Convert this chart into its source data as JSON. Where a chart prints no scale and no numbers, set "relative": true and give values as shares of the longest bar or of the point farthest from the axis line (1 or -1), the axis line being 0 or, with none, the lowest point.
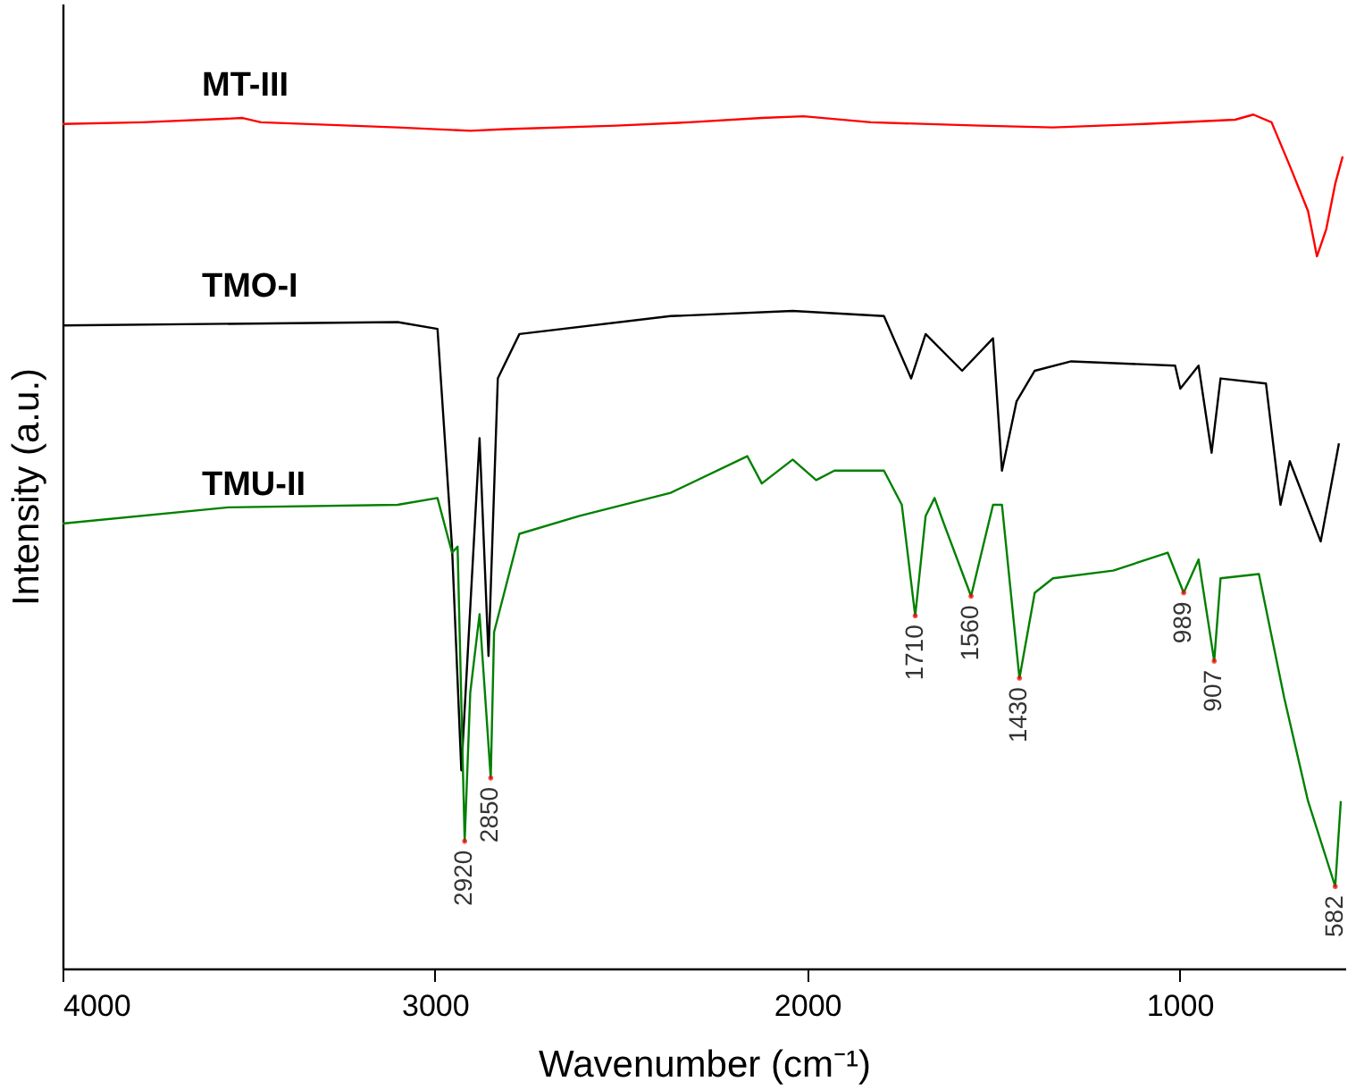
{
  "chart_data": {
    "type": "line",
    "relative": true,
    "xlabel": "Wavenumber (cm⁻¹)",
    "ylabel": "Intensity (a.u.)",
    "xlim": [
      4000,
      555
    ],
    "xticks": [
      4000,
      3000,
      2000,
      1000
    ],
    "legend": false,
    "grid": false,
    "marker": "none",
    "line_style": "solid",
    "series": [
      {
        "name": "MT-III",
        "color": "#ff0000",
        "x": [
          4000,
          3785,
          3516,
          3467,
          3100,
          2905,
          2807,
          2513,
          2318,
          2122,
          2010,
          1829,
          1535,
          1340,
          1095,
          851,
          802,
          753,
          704,
          655,
          631,
          606,
          582,
          562
        ],
        "values": [
          0.989,
          0.991,
          0.996,
          0.991,
          0.985,
          0.981,
          0.983,
          0.987,
          0.991,
          0.996,
          0.998,
          0.991,
          0.987,
          0.985,
          0.989,
          0.994,
          1.0,
          0.991,
          0.94,
          0.887,
          0.834,
          0.866,
          0.919,
          0.951
        ]
      },
      {
        "name": "TMO-I",
        "color": "#000000",
        "x": [
          4000,
          3100,
          2993,
          2954,
          2929,
          2880,
          2856,
          2831,
          2773,
          2367,
          2039,
          1794,
          1721,
          1682,
          1584,
          1501,
          1477,
          1438,
          1389,
          1291,
          1012,
          998,
          949,
          914,
          890,
          768,
          729,
          704,
          621,
          572
        ],
        "values": [
          0.753,
          0.757,
          0.749,
          0.494,
          0.232,
          0.621,
          0.366,
          0.691,
          0.743,
          0.764,
          0.77,
          0.764,
          0.691,
          0.743,
          0.7,
          0.738,
          0.583,
          0.664,
          0.7,
          0.711,
          0.706,
          0.679,
          0.706,
          0.604,
          0.691,
          0.685,
          0.543,
          0.594,
          0.5,
          0.615
        ]
      },
      {
        "name": "TMU-II",
        "color": "#008000",
        "x": [
          4000,
          3555,
          3100,
          2993,
          2954,
          2939,
          2920,
          2905,
          2880,
          2850,
          2841,
          2773,
          2611,
          2367,
          2161,
          2122,
          2039,
          1976,
          1927,
          1794,
          1746,
          1710,
          1682,
          1658,
          1633,
          1560,
          1501,
          1477,
          1430,
          1389,
          1340,
          1178,
          1032,
          989,
          949,
          907,
          890,
          787,
          719,
          655,
          582,
          567
        ],
        "values": [
          0.521,
          0.54,
          0.543,
          0.551,
          0.487,
          0.494,
          0.149,
          0.323,
          0.415,
          0.223,
          0.394,
          0.509,
          0.53,
          0.557,
          0.6,
          0.568,
          0.596,
          0.572,
          0.583,
          0.583,
          0.543,
          0.413,
          0.53,
          0.551,
          0.521,
          0.436,
          0.543,
          0.543,
          0.34,
          0.44,
          0.457,
          0.466,
          0.487,
          0.44,
          0.479,
          0.36,
          0.457,
          0.462,
          0.317,
          0.196,
          0.096,
          0.196
        ]
      }
    ],
    "annotations": [
      {
        "text": "2920",
        "x": 2920,
        "y": 0.149
      },
      {
        "text": "2850",
        "x": 2850,
        "y": 0.223
      },
      {
        "text": "1710",
        "x": 1710,
        "y": 0.413
      },
      {
        "text": "1560",
        "x": 1560,
        "y": 0.436
      },
      {
        "text": "1430",
        "x": 1430,
        "y": 0.34
      },
      {
        "text": "989",
        "x": 989,
        "y": 0.44
      },
      {
        "text": "907",
        "x": 907,
        "y": 0.36
      },
      {
        "text": "582",
        "x": 582,
        "y": 0.096
      }
    ]
  }
}
